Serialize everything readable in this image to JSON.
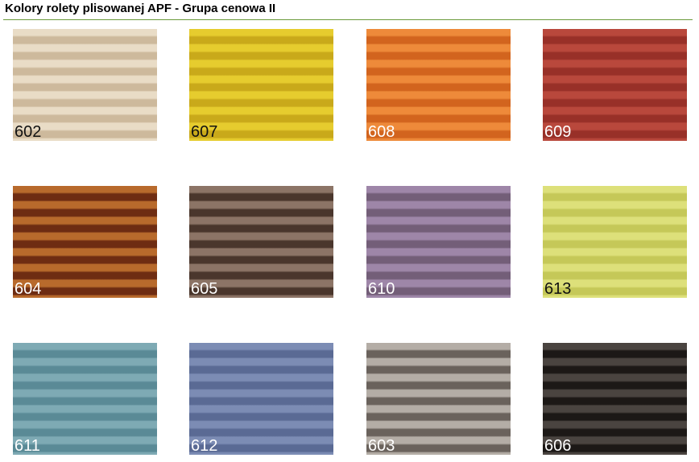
{
  "title": "Kolory rolety plisowanej APF - Grupa cenowa II",
  "swatches": [
    {
      "code": "602",
      "light": "#e9dcc6",
      "dark": "#cdb99c",
      "text": "#111111"
    },
    {
      "code": "607",
      "light": "#e6cc2e",
      "dark": "#c9a91a",
      "text": "#111111"
    },
    {
      "code": "608",
      "light": "#ee8a3a",
      "dark": "#d2641e",
      "text": "#ffffff"
    },
    {
      "code": "609",
      "light": "#b9483c",
      "dark": "#983028",
      "text": "#ffffff"
    },
    {
      "code": "604",
      "light": "#b86a2c",
      "dark": "#6e2c12",
      "text": "#ffffff"
    },
    {
      "code": "605",
      "light": "#8c7466",
      "dark": "#4a362c",
      "text": "#ffffff"
    },
    {
      "code": "610",
      "light": "#9e86a8",
      "dark": "#735e78",
      "text": "#ffffff"
    },
    {
      "code": "613",
      "light": "#dde07a",
      "dark": "#c5c858",
      "text": "#111111"
    },
    {
      "code": "611",
      "light": "#7eaab4",
      "dark": "#5a8a96",
      "text": "#ffffff"
    },
    {
      "code": "612",
      "light": "#7c8cb4",
      "dark": "#5a6a94",
      "text": "#ffffff"
    },
    {
      "code": "603",
      "light": "#b4ada6",
      "dark": "#6a625c",
      "text": "#ffffff"
    },
    {
      "code": "606",
      "light": "#4a4440",
      "dark": "#1c1816",
      "text": "#ffffff"
    }
  ]
}
